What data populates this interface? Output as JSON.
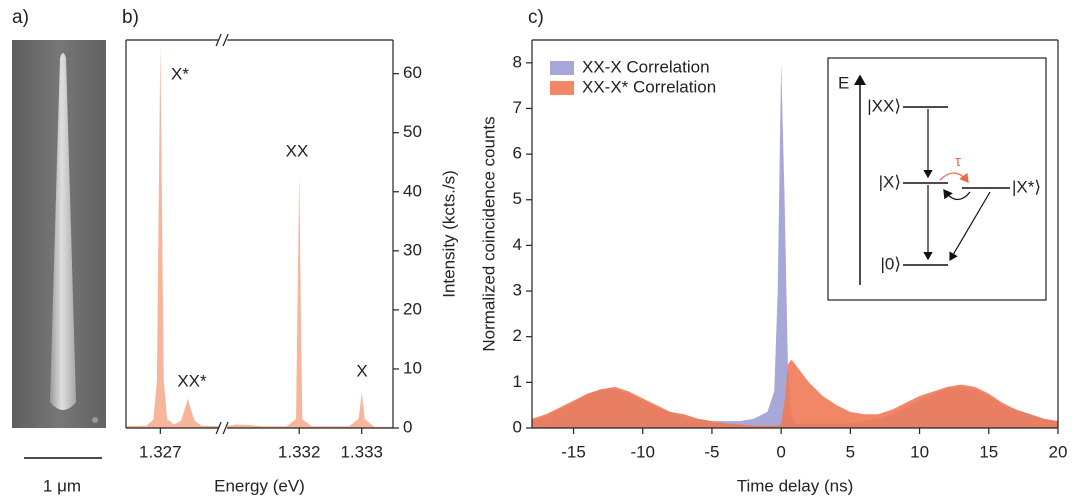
{
  "panel_a": {
    "label": "a)",
    "scale_bar": "1 μm"
  },
  "chart_data": [
    {
      "type": "area",
      "panel_label": "b)",
      "xlabel": "Energy (eV)",
      "ylabel": "Intensity (kcts./s)",
      "color": "#f7b69b",
      "x": [
        1.3265,
        1.3268,
        1.3269,
        1.32695,
        1.327,
        1.32705,
        1.3271,
        1.3272,
        1.3273,
        1.32735,
        1.3274,
        1.32745,
        1.3275,
        1.3276,
        1.3279,
        1.329,
        1.3308,
        1.331,
        1.3312,
        1.3314,
        1.3318,
        1.33195,
        1.332,
        1.33205,
        1.3322,
        1.3328,
        1.33295,
        1.333,
        1.33305,
        1.3332,
        1.3335
      ],
      "values": [
        0.3,
        0.4,
        1.5,
        8,
        65,
        8,
        1.5,
        0.6,
        1.2,
        3,
        5,
        3,
        1.2,
        0.4,
        0.3,
        null,
        0.3,
        0.6,
        0.5,
        0.3,
        0.3,
        1.5,
        43,
        1.5,
        0.3,
        0.3,
        1.5,
        6,
        1.5,
        0.2,
        0.2
      ],
      "xlim": [
        1.3265,
        1.3335
      ],
      "xbreak": [
        1.3279,
        1.3308
      ],
      "xticks": [
        1.327,
        1.332,
        1.333
      ],
      "ylim": [
        0,
        65.7
      ],
      "yticks": [
        0,
        10,
        20,
        30,
        40,
        50,
        60
      ],
      "annotations": [
        "X*",
        "XX*",
        "XX",
        "X"
      ]
    },
    {
      "type": "area",
      "panel_label": "c)",
      "xlabel": "Time delay (ns)",
      "ylabel": "Normalized coincidence counts",
      "x": [
        -18,
        -17,
        -16,
        -15,
        -14,
        -13,
        -12,
        -11,
        -10,
        -9,
        -8,
        -7,
        -6,
        -5,
        -4,
        -3,
        -2,
        -1,
        -0.5,
        -0.25,
        0,
        0.25,
        0.5,
        0.75,
        1,
        1.5,
        2,
        3,
        4,
        5,
        6,
        7,
        8,
        9,
        10,
        11,
        12,
        13,
        14,
        15,
        16,
        17,
        18,
        19,
        20
      ],
      "series": [
        {
          "name": "XX-X Correlation",
          "color": "#9d9fd4",
          "values": [
            0.15,
            0.25,
            0.4,
            0.55,
            0.75,
            0.85,
            0.85,
            0.75,
            0.6,
            0.45,
            0.35,
            0.25,
            0.2,
            0.15,
            0.15,
            0.15,
            0.2,
            0.35,
            0.8,
            3,
            8,
            5,
            1.2,
            0.3,
            0.1,
            0.1,
            0.1,
            0.1,
            0.1,
            0.1,
            0.15,
            0.2,
            0.3,
            0.45,
            0.6,
            0.75,
            0.85,
            0.9,
            0.85,
            0.7,
            0.5,
            0.4,
            0.3,
            0.2,
            0.15
          ]
        },
        {
          "name": "XX-X* Correlation",
          "color": "#ef7a56",
          "values": [
            0.2,
            0.3,
            0.45,
            0.6,
            0.75,
            0.85,
            0.9,
            0.8,
            0.65,
            0.5,
            0.35,
            0.3,
            0.2,
            0.15,
            0.1,
            0.08,
            0.05,
            0.05,
            0.05,
            0.05,
            0.1,
            0.6,
            1.4,
            1.5,
            1.4,
            1.2,
            1.0,
            0.7,
            0.5,
            0.35,
            0.3,
            0.3,
            0.4,
            0.55,
            0.7,
            0.8,
            0.9,
            0.95,
            0.9,
            0.75,
            0.55,
            0.4,
            0.3,
            0.2,
            0.15
          ]
        }
      ],
      "xlim": [
        -18,
        20
      ],
      "xticks": [
        -15,
        -10,
        -5,
        0,
        5,
        10,
        15,
        20
      ],
      "ylim": [
        0,
        8.5
      ],
      "yticks": [
        0,
        1,
        2,
        3,
        4,
        5,
        6,
        7,
        8
      ],
      "inset": {
        "axis": "E",
        "levels": [
          "|XX⟩",
          "|X⟩",
          "|X*⟩",
          "|0⟩"
        ],
        "rate": "τ"
      }
    }
  ]
}
